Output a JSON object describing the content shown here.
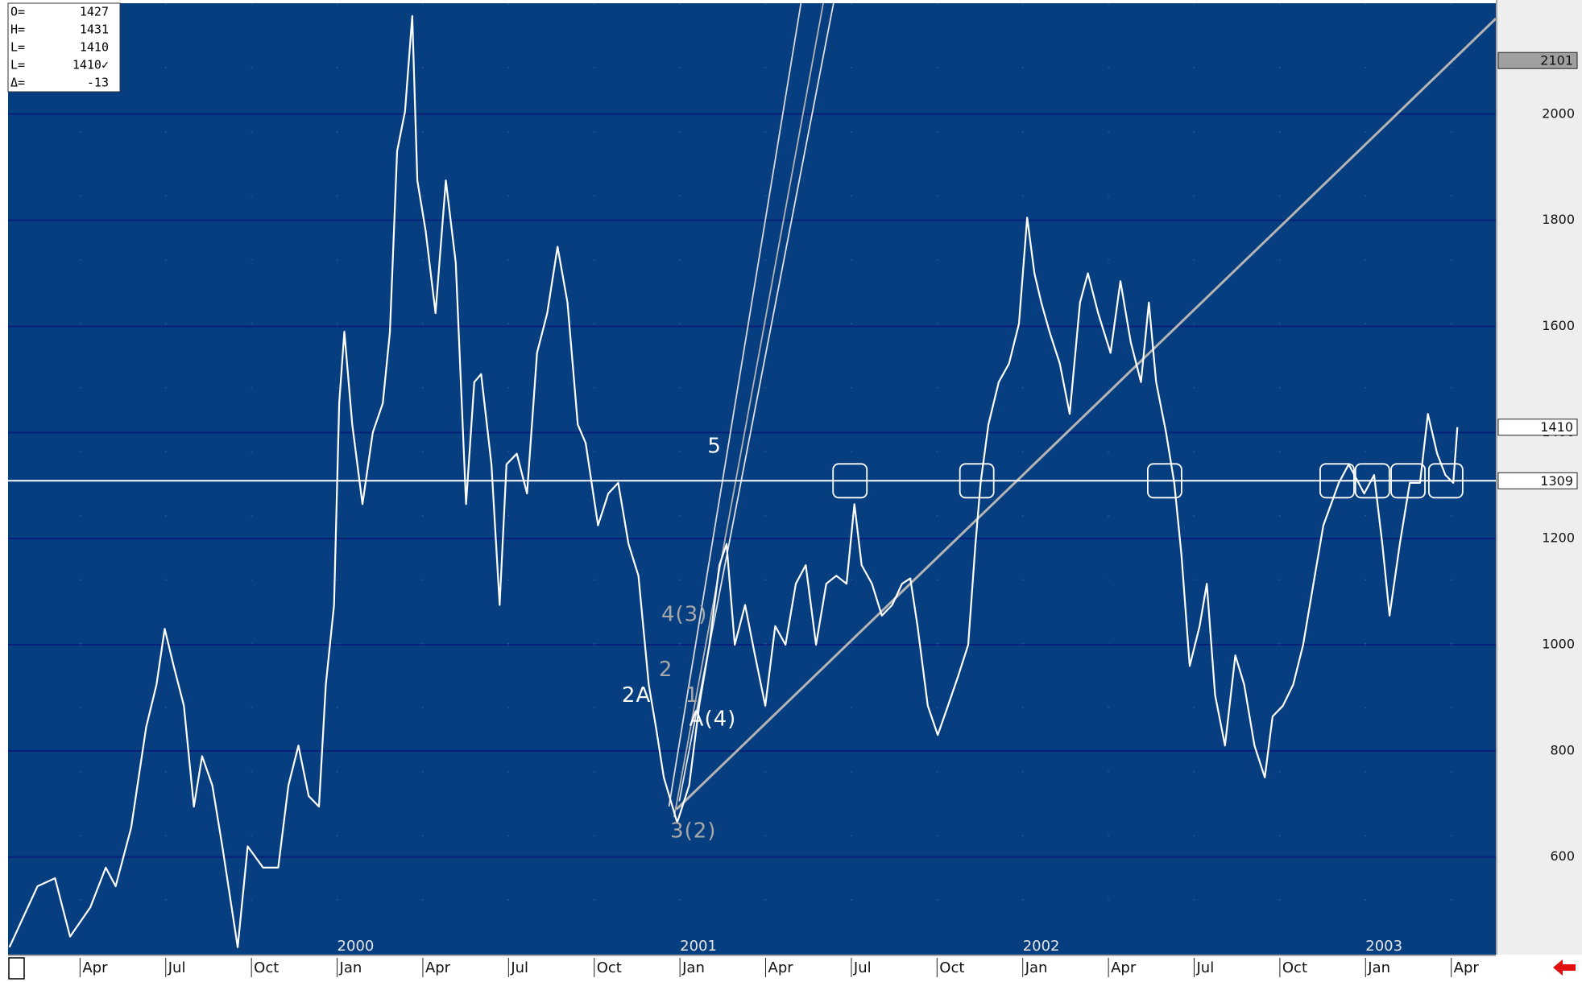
{
  "info_panel": {
    "rows": [
      {
        "key": "O=",
        "value": "1427"
      },
      {
        "key": "H=",
        "value": "1431"
      },
      {
        "key": "L=",
        "value": "1410"
      },
      {
        "key": "L=",
        "value": "1410✓"
      },
      {
        "key": "Δ=",
        "value": "-13"
      }
    ]
  },
  "chart_data": {
    "type": "line",
    "color": "#ffffff",
    "xlim": [
      1999.04,
      2003.38
    ],
    "ylim": [
      416,
      2209
    ],
    "yticks": [
      600,
      800,
      1000,
      1200,
      1400,
      1600,
      1800,
      2000
    ],
    "grid": true,
    "xticks": [
      {
        "value": 1999.25,
        "label": "Apr"
      },
      {
        "value": 1999.5,
        "label": "Jul"
      },
      {
        "value": 1999.75,
        "label": "Oct"
      },
      {
        "value": 2000.0,
        "label": "Jan"
      },
      {
        "value": 2000.25,
        "label": "Apr"
      },
      {
        "value": 2000.5,
        "label": "Jul"
      },
      {
        "value": 2000.75,
        "label": "Oct"
      },
      {
        "value": 2001.0,
        "label": "Jan"
      },
      {
        "value": 2001.25,
        "label": "Apr"
      },
      {
        "value": 2001.5,
        "label": "Jul"
      },
      {
        "value": 2001.75,
        "label": "Oct"
      },
      {
        "value": 2002.0,
        "label": "Jan"
      },
      {
        "value": 2002.25,
        "label": "Apr"
      },
      {
        "value": 2002.5,
        "label": "Jul"
      },
      {
        "value": 2002.75,
        "label": "Oct"
      },
      {
        "value": 2003.0,
        "label": "Jan"
      },
      {
        "value": 2003.25,
        "label": "Apr"
      }
    ],
    "year_ticks": [
      2000,
      2001,
      2002,
      2003
    ],
    "x": [
      1999.044,
      1999.126,
      1999.177,
      1999.221,
      1999.28,
      1999.325,
      1999.354,
      1999.399,
      1999.443,
      1999.473,
      1999.497,
      1999.523,
      1999.553,
      1999.582,
      1999.606,
      1999.636,
      1999.665,
      1999.71,
      1999.739,
      1999.784,
      1999.828,
      1999.858,
      1999.887,
      1999.917,
      1999.947,
      1999.967,
      1999.991,
      2000.006,
      2000.021,
      2000.044,
      2000.074,
      2000.104,
      2000.133,
      2000.154,
      2000.175,
      2000.198,
      2000.219,
      2000.234,
      2000.258,
      2000.287,
      2000.317,
      2000.346,
      2000.376,
      2000.4,
      2000.42,
      2000.45,
      2000.474,
      2000.494,
      2000.524,
      2000.554,
      2000.583,
      2000.613,
      2000.643,
      2000.672,
      2000.702,
      2000.725,
      2000.761,
      2000.791,
      2000.82,
      2000.85,
      2000.879,
      2000.909,
      2000.93,
      2000.953,
      2000.992,
      2001.027,
      2001.056,
      2001.086,
      2001.115,
      2001.136,
      2001.16,
      2001.19,
      2001.219,
      2001.249,
      2001.278,
      2001.308,
      2001.338,
      2001.367,
      2001.397,
      2001.427,
      2001.456,
      2001.486,
      2001.509,
      2001.53,
      2001.56,
      2001.589,
      2001.619,
      2001.648,
      2001.672,
      2001.693,
      2001.723,
      2001.752,
      2001.782,
      2001.811,
      2001.841,
      2001.862,
      2001.877,
      2001.9,
      2001.93,
      2001.96,
      2001.989,
      2002.013,
      2002.034,
      2002.054,
      2002.078,
      2002.108,
      2002.137,
      2002.167,
      2002.19,
      2002.22,
      2002.256,
      2002.285,
      2002.315,
      2002.345,
      2002.368,
      2002.389,
      2002.418,
      2002.442,
      2002.463,
      2002.487,
      2002.516,
      2002.537,
      2002.561,
      2002.59,
      2002.62,
      2002.646,
      2002.676,
      2002.706,
      2002.729,
      2002.759,
      2002.789,
      2002.818,
      2002.848,
      2002.877,
      2002.922,
      2002.951,
      2002.996,
      2003.025,
      2003.049,
      2003.07,
      2003.1,
      2003.129,
      2003.159,
      2003.182,
      2003.209,
      2003.233,
      2003.256,
      2003.268
    ],
    "values": [
      430,
      545,
      560,
      450,
      505,
      580,
      545,
      655,
      845,
      925,
      1030,
      960,
      885,
      695,
      790,
      735,
      620,
      430,
      620,
      580,
      580,
      735,
      810,
      715,
      695,
      925,
      1075,
      1455,
      1590,
      1415,
      1265,
      1400,
      1455,
      1590,
      1930,
      2005,
      2185,
      1875,
      1780,
      1625,
      1875,
      1720,
      1265,
      1495,
      1510,
      1340,
      1075,
      1340,
      1360,
      1285,
      1550,
      1625,
      1750,
      1645,
      1415,
      1380,
      1225,
      1285,
      1305,
      1190,
      1130,
      925,
      845,
      750,
      665,
      735,
      885,
      1000,
      1150,
      1190,
      1000,
      1075,
      980,
      885,
      1035,
      1000,
      1115,
      1150,
      1000,
      1115,
      1130,
      1115,
      1265,
      1150,
      1115,
      1055,
      1075,
      1115,
      1125,
      1035,
      885,
      830,
      885,
      940,
      1000,
      1190,
      1305,
      1415,
      1495,
      1530,
      1605,
      1805,
      1700,
      1645,
      1590,
      1530,
      1435,
      1645,
      1700,
      1625,
      1550,
      1685,
      1570,
      1495,
      1645,
      1495,
      1400,
      1305,
      1170,
      960,
      1035,
      1115,
      905,
      810,
      980,
      925,
      810,
      750,
      865,
      885,
      925,
      1000,
      1115,
      1225,
      1305,
      1340,
      1285,
      1320,
      1190,
      1055,
      1190,
      1305,
      1305,
      1435,
      1360,
      1320,
      1305,
      1410
    ],
    "price_markers": [
      {
        "value": 2101,
        "fill": "#a0a0a0"
      },
      {
        "value": 1410,
        "fill": "#ffffff"
      },
      {
        "value": 1309,
        "fill": "#ffffff"
      }
    ],
    "level_touches": [
      2001.496,
      2001.866,
      2002.414,
      2002.917,
      2003.02,
      2003.124,
      2003.234
    ],
    "trend_lines": [
      {
        "x": [
          2000.99,
          2003.38
        ],
        "values": [
          690,
          2180
        ],
        "color": "#b4b4b4"
      },
      {
        "x": [
          2000.968,
          2001.353
        ],
        "values": [
          695,
          2209
        ],
        "color": "#d8d8d8"
      },
      {
        "x": [
          2000.983,
          2001.418
        ],
        "values": [
          675,
          2209
        ],
        "color": "#b4b4b4"
      },
      {
        "x": [
          2000.998,
          2001.448
        ],
        "values": [
          705,
          2209
        ],
        "color": "#e0e0e0"
      }
    ],
    "annotations": [
      {
        "text": "5",
        "x": 2001.101,
        "y": 1373,
        "color": "#ffffff"
      },
      {
        "text": "4(3)",
        "x": 2001.013,
        "y": 1056,
        "color": "#a8a8a8"
      },
      {
        "text": "2",
        "x": 2000.959,
        "y": 952,
        "color": "#a8a8a8"
      },
      {
        "text": "2A",
        "x": 2000.873,
        "y": 904,
        "color": "#ffffff"
      },
      {
        "text": "1",
        "x": 2001.036,
        "y": 904,
        "color": "#a8a8a8"
      },
      {
        "text": "A(4)",
        "x": 2001.096,
        "y": 859,
        "color": "#ffffff"
      },
      {
        "text": "3(2)",
        "x": 2001.039,
        "y": 648,
        "color": "#a8a8a8"
      }
    ]
  }
}
